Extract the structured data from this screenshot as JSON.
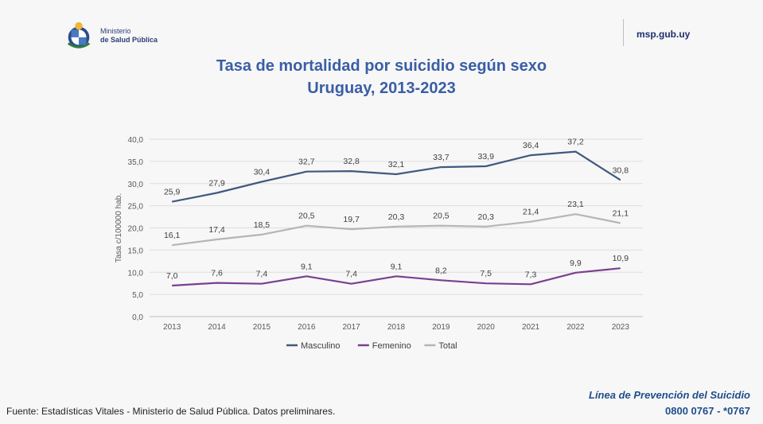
{
  "header": {
    "logo_line1": "Ministerio",
    "logo_line2": "de Salud Pública",
    "site": "msp.gub.uy"
  },
  "footer": {
    "source": "Fuente: Estadísticas Vitales - Ministerio de Salud Pública. Datos preliminares.",
    "helpline_title": "Línea de Prevención del Suicidio",
    "helpline_phone": "0800 0767 - *0767"
  },
  "chart_data": {
    "type": "line",
    "title": "Tasa de mortalidad por suicidio según sexo",
    "subtitle": "Uruguay, 2013-2023",
    "ylabel": "Tasa c/100000 hab.",
    "xlabel": "",
    "x": [
      "2013",
      "2014",
      "2015",
      "2016",
      "2017",
      "2018",
      "2019",
      "2020",
      "2021",
      "2022",
      "2023"
    ],
    "ylim": [
      0,
      40
    ],
    "yticks": [
      "0,0",
      "5,0",
      "10,0",
      "15,0",
      "20,0",
      "25,0",
      "30,0",
      "35,0",
      "40,0"
    ],
    "grid": true,
    "legend_position": "bottom",
    "series": [
      {
        "name": "Masculino",
        "color": "#41597f",
        "values": [
          25.9,
          27.9,
          30.4,
          32.7,
          32.8,
          32.1,
          33.7,
          33.9,
          36.4,
          37.2,
          30.8
        ],
        "labels": [
          "25,9",
          "27,9",
          "30,4",
          "32,7",
          "32,8",
          "32,1",
          "33,7",
          "33,9",
          "36,4",
          "37,2",
          "30,8"
        ]
      },
      {
        "name": "Femenino",
        "color": "#7b3f8f",
        "values": [
          7.0,
          7.6,
          7.4,
          9.1,
          7.4,
          9.1,
          8.2,
          7.5,
          7.3,
          9.9,
          10.9
        ],
        "labels": [
          "7,0",
          "7,6",
          "7,4",
          "9,1",
          "7,4",
          "9,1",
          "8,2",
          "7,5",
          "7,3",
          "9,9",
          "10,9"
        ]
      },
      {
        "name": "Total",
        "color": "#b5b5b5",
        "values": [
          16.1,
          17.4,
          18.5,
          20.5,
          19.7,
          20.3,
          20.5,
          20.3,
          21.4,
          23.1,
          21.1
        ],
        "labels": [
          "16,1",
          "17,4",
          "18,5",
          "20,5",
          "19,7",
          "20,3",
          "20,5",
          "20,3",
          "21,4",
          "23,1",
          "21,1"
        ]
      }
    ]
  }
}
